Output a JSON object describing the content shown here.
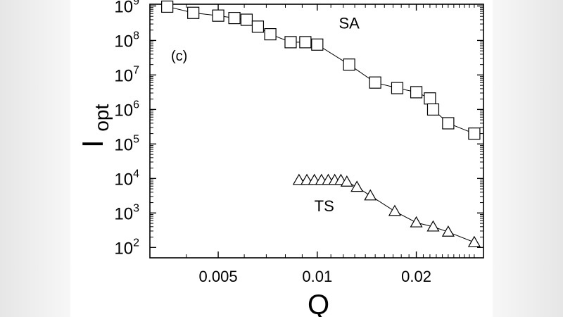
{
  "chart_data": {
    "type": "scatter",
    "panel_label": "(c)",
    "xlabel": "Q",
    "ylabel_main": "I",
    "ylabel_sub": "opt",
    "x_scale": "log",
    "y_scale": "log",
    "xlim": [
      0.0031,
      0.032
    ],
    "ylim_exp": [
      1.7,
      9.05
    ],
    "x_ticks": [
      {
        "value": 0.005,
        "label": "0.005"
      },
      {
        "value": 0.01,
        "label": "0.01"
      },
      {
        "value": 0.02,
        "label": "0.02"
      }
    ],
    "y_ticks": [
      {
        "exp": 2,
        "base": "10",
        "sup": "2"
      },
      {
        "exp": 3,
        "base": "10",
        "sup": "3"
      },
      {
        "exp": 4,
        "base": "10",
        "sup": "4"
      },
      {
        "exp": 5,
        "base": "10",
        "sup": "5"
      },
      {
        "exp": 6,
        "base": "10",
        "sup": "6"
      },
      {
        "exp": 7,
        "base": "10",
        "sup": "7"
      },
      {
        "exp": 8,
        "base": "10",
        "sup": "8"
      },
      {
        "exp": 9,
        "base": "10",
        "sup": "9"
      }
    ],
    "series": [
      {
        "name": "SA",
        "marker": "square",
        "label_at": {
          "q": 0.0125,
          "exp": 8.35
        },
        "points": [
          {
            "q": 0.0035,
            "exp": 8.98
          },
          {
            "q": 0.0042,
            "exp": 8.8
          },
          {
            "q": 0.005,
            "exp": 8.72
          },
          {
            "q": 0.0056,
            "exp": 8.65
          },
          {
            "q": 0.0061,
            "exp": 8.6
          },
          {
            "q": 0.0066,
            "exp": 8.4
          },
          {
            "q": 0.0072,
            "exp": 8.18
          },
          {
            "q": 0.0083,
            "exp": 7.95
          },
          {
            "q": 0.0092,
            "exp": 7.95
          },
          {
            "q": 0.01,
            "exp": 7.88
          },
          {
            "q": 0.0125,
            "exp": 7.3
          },
          {
            "q": 0.015,
            "exp": 6.78
          },
          {
            "q": 0.0175,
            "exp": 6.62
          },
          {
            "q": 0.02,
            "exp": 6.5
          },
          {
            "q": 0.022,
            "exp": 6.32
          },
          {
            "q": 0.0225,
            "exp": 6.0
          },
          {
            "q": 0.025,
            "exp": 5.6
          },
          {
            "q": 0.03,
            "exp": 5.3
          }
        ]
      },
      {
        "name": "TS",
        "marker": "triangle",
        "label_at": {
          "q": 0.0105,
          "exp": 3.05
        },
        "points": [
          {
            "q": 0.0088,
            "exp": 3.95
          },
          {
            "q": 0.0093,
            "exp": 3.95
          },
          {
            "q": 0.0098,
            "exp": 3.95
          },
          {
            "q": 0.0103,
            "exp": 3.95
          },
          {
            "q": 0.0108,
            "exp": 3.95
          },
          {
            "q": 0.0113,
            "exp": 3.95
          },
          {
            "q": 0.0118,
            "exp": 3.95
          },
          {
            "q": 0.0123,
            "exp": 3.9
          },
          {
            "q": 0.0132,
            "exp": 3.75
          },
          {
            "q": 0.0145,
            "exp": 3.5
          },
          {
            "q": 0.0172,
            "exp": 3.05
          },
          {
            "q": 0.02,
            "exp": 2.72
          },
          {
            "q": 0.0225,
            "exp": 2.6
          },
          {
            "q": 0.025,
            "exp": 2.45
          },
          {
            "q": 0.03,
            "exp": 2.15
          }
        ]
      }
    ]
  }
}
